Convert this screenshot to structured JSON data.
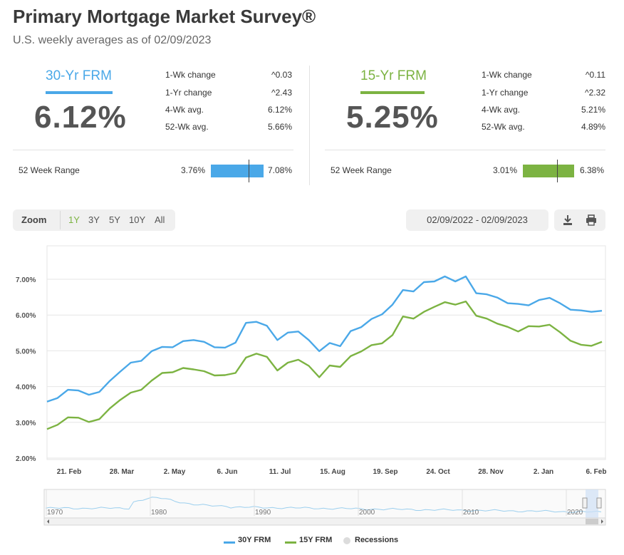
{
  "header": {
    "title": "Primary Mortgage Market Survey®",
    "subtitle": "U.S. weekly averages as of 02/09/2023"
  },
  "cards": [
    {
      "label": "30-Yr FRM",
      "rate": "6.12%",
      "color": "#4aa8e8",
      "stats": [
        {
          "label": "1-Wk change",
          "value": "^0.03"
        },
        {
          "label": "1-Yr change",
          "value": "^2.43"
        },
        {
          "label": "4-Wk avg.",
          "value": "6.12%"
        },
        {
          "label": "52-Wk avg.",
          "value": "5.66%"
        }
      ],
      "range_label": "52 Week Range",
      "range_min": "3.76%",
      "range_max": "7.08%",
      "range_fraction": 0.71
    },
    {
      "label": "15-Yr FRM",
      "rate": "5.25%",
      "color": "#7cb342",
      "stats": [
        {
          "label": "1-Wk change",
          "value": "^0.11"
        },
        {
          "label": "1-Yr change",
          "value": "^2.32"
        },
        {
          "label": "4-Wk avg.",
          "value": "5.21%"
        },
        {
          "label": "52-Wk avg.",
          "value": "4.89%"
        }
      ],
      "range_label": "52 Week Range",
      "range_min": "3.01%",
      "range_max": "6.38%",
      "range_fraction": 0.67
    }
  ],
  "toolbar": {
    "zoom_label": "Zoom",
    "zoom_options": [
      "1Y",
      "3Y",
      "5Y",
      "10Y",
      "All"
    ],
    "active_zoom": "1Y",
    "date_range": "02/09/2022 - 02/09/2023",
    "icons": [
      "download-icon",
      "print-icon"
    ]
  },
  "chart_data": {
    "type": "line",
    "y_ticks": [
      "7.00%",
      "6.00%",
      "5.00%",
      "4.00%",
      "3.00%",
      "2.00%"
    ],
    "ylim": [
      2.0,
      7.0
    ],
    "x_tick_labels": [
      "21. Feb",
      "28. Mar",
      "2. May",
      "6. Jun",
      "11. Jul",
      "15. Aug",
      "19. Sep",
      "24. Oct",
      "28. Nov",
      "2. Jan",
      "6. Feb"
    ],
    "grid": true,
    "series": [
      {
        "name": "30Y FRM",
        "color": "#4aa8e8",
        "values": [
          3.58,
          3.68,
          3.91,
          3.89,
          3.77,
          3.85,
          4.16,
          4.42,
          4.67,
          4.72,
          4.99,
          5.11,
          5.1,
          5.27,
          5.3,
          5.25,
          5.1,
          5.09,
          5.23,
          5.78,
          5.81,
          5.7,
          5.3,
          5.51,
          5.54,
          5.3,
          4.99,
          5.22,
          5.13,
          5.55,
          5.66,
          5.89,
          6.02,
          6.29,
          6.7,
          6.66,
          6.92,
          6.94,
          7.08,
          6.94,
          7.08,
          6.61,
          6.58,
          6.49,
          6.33,
          6.31,
          6.27,
          6.42,
          6.48,
          6.33,
          6.15,
          6.13,
          6.09,
          6.12
        ]
      },
      {
        "name": "15Y FRM",
        "color": "#7cb342",
        "values": [
          2.81,
          2.93,
          3.14,
          3.13,
          3.01,
          3.09,
          3.39,
          3.63,
          3.83,
          3.91,
          4.17,
          4.38,
          4.4,
          4.52,
          4.48,
          4.43,
          4.31,
          4.32,
          4.38,
          4.81,
          4.92,
          4.83,
          4.45,
          4.67,
          4.75,
          4.58,
          4.26,
          4.59,
          4.55,
          4.85,
          4.98,
          5.16,
          5.21,
          5.44,
          5.96,
          5.9,
          6.09,
          6.23,
          6.36,
          6.29,
          6.38,
          5.98,
          5.9,
          5.76,
          5.67,
          5.54,
          5.69,
          5.68,
          5.73,
          5.52,
          5.28,
          5.17,
          5.14,
          5.25
        ]
      }
    ],
    "navigator": {
      "x_tick_labels": [
        "1970",
        "1980",
        "1990",
        "2000",
        "2010",
        "2020"
      ]
    },
    "legend": [
      {
        "label": "30Y FRM",
        "color": "#4aa8e8"
      },
      {
        "label": "15Y FRM",
        "color": "#7cb342"
      },
      {
        "label": "Recessions",
        "color": "#dcdcdc"
      }
    ]
  }
}
